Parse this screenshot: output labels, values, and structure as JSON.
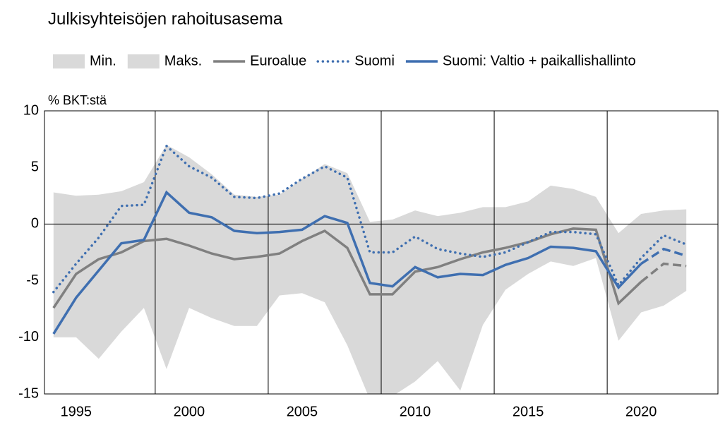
{
  "chart_data": {
    "type": "line",
    "title": "Julkisyhteisöjen rahoitusasema",
    "y_label": "% BKT:stä",
    "x": [
      1994,
      1995,
      1996,
      1997,
      1998,
      1999,
      2000,
      2001,
      2002,
      2003,
      2004,
      2005,
      2006,
      2007,
      2008,
      2009,
      2010,
      2011,
      2012,
      2013,
      2014,
      2015,
      2016,
      2017,
      2018,
      2019,
      2020,
      2021,
      2022
    ],
    "xlim": [
      1993.6,
      2023.4
    ],
    "xticks": [
      1995,
      2000,
      2005,
      2010,
      2015,
      2020
    ],
    "xgrid": [
      1998.5,
      2003.5,
      2008.5,
      2013.5,
      2018.5
    ],
    "ylim": [
      -15,
      10
    ],
    "yticks": [
      10,
      5,
      0,
      -5,
      -10,
      -15
    ],
    "forecast_from": 2020,
    "band": {
      "color": "#d9d9d9"
    },
    "series": [
      {
        "name": "Min.",
        "role": "band-low",
        "color": "#d9d9d9",
        "values": [
          -10,
          -10,
          -11.9,
          -9.5,
          -7.4,
          -12.8,
          -7.4,
          -8.3,
          -9,
          -9,
          -6.3,
          -6.1,
          -6.9,
          -10.7,
          -15.5,
          -15.2,
          -13.9,
          -12.1,
          -14.7,
          -8.9,
          -5.8,
          -4.4,
          -3.3,
          -3.7,
          -3,
          -10.3,
          -7.8,
          -7.2,
          -5.9
        ]
      },
      {
        "name": "Maks.",
        "role": "band-high",
        "color": "#d9d9d9",
        "values": [
          2.8,
          2.5,
          2.6,
          2.9,
          3.7,
          7,
          5.9,
          4.4,
          2.6,
          2.4,
          2.6,
          4,
          5.3,
          4.5,
          0.2,
          0.4,
          1.2,
          0.7,
          1,
          1.5,
          1.5,
          2,
          3.4,
          3.1,
          2.4,
          -0.8,
          0.9,
          1.2,
          1.3
        ]
      },
      {
        "name": "Euroalue",
        "style": "solid",
        "color": "#808080",
        "values": [
          -7.4,
          -4.4,
          -3.1,
          -2.5,
          -1.5,
          -1.3,
          -1.9,
          -2.6,
          -3.1,
          -2.9,
          -2.6,
          -1.5,
          -0.6,
          -2.1,
          -6.2,
          -6.2,
          -4.2,
          -3.8,
          -3.1,
          -2.5,
          -2.1,
          -1.6,
          -0.9,
          -0.4,
          -0.5,
          -7,
          -5.1,
          -3.5,
          -3.7
        ]
      },
      {
        "name": "Suomi",
        "style": "dotted",
        "color": "#3f6fb0",
        "values": [
          -6,
          -3.5,
          -1.2,
          1.6,
          1.7,
          6.9,
          5.1,
          4.1,
          2.4,
          2.3,
          2.7,
          4,
          5.1,
          4.1,
          -2.5,
          -2.5,
          -1.1,
          -2.2,
          -2.6,
          -2.9,
          -2.5,
          -1.6,
          -0.7,
          -0.7,
          -0.9,
          -5.4,
          -3,
          -1,
          -1.8
        ]
      },
      {
        "name": "Suomi: Valtio + paikallishallinto",
        "style": "solid",
        "color": "#3f6fb0",
        "values": [
          -9.7,
          -6.5,
          -4.1,
          -1.7,
          -1.4,
          2.8,
          1,
          0.6,
          -0.6,
          -0.8,
          -0.7,
          -0.5,
          0.7,
          0.1,
          -5.2,
          -5.5,
          -3.8,
          -4.7,
          -4.4,
          -4.5,
          -3.6,
          -3,
          -2,
          -2.1,
          -2.4,
          -5.6,
          -3.5,
          -2.2,
          -2.8
        ]
      }
    ]
  }
}
